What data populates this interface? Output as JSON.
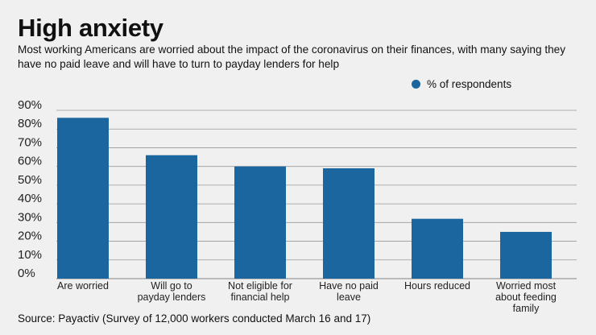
{
  "chart_data": {
    "type": "bar",
    "title": "High anxiety",
    "subtitle": "Most working Americans are worried about the impact of the coronavirus on their finances, with many saying they have no paid leave and will have to turn to payday lenders for help",
    "categories": [
      [
        "Are worried"
      ],
      [
        "Will go to",
        "payday lenders"
      ],
      [
        "Not eligible for",
        "financial help"
      ],
      [
        "Have no paid",
        "leave"
      ],
      [
        "Hours reduced"
      ],
      [
        "Worried most",
        "about feeding",
        "family"
      ]
    ],
    "series": [
      {
        "name": "% of respondents",
        "values": [
          86,
          66,
          60,
          59,
          32,
          25
        ],
        "color": "#1c66a0"
      }
    ],
    "yticks": [
      "0%",
      "10%",
      "20%",
      "30%",
      "40%",
      "50%",
      "60%",
      "70%",
      "80%",
      "90%"
    ],
    "ylim": [
      0,
      90
    ],
    "grid": true,
    "legend_position": "top-right",
    "xlabel": "",
    "ylabel": "",
    "source": "Source: Payactiv (Survey of 12,000 workers conducted March 16 and 17)"
  }
}
